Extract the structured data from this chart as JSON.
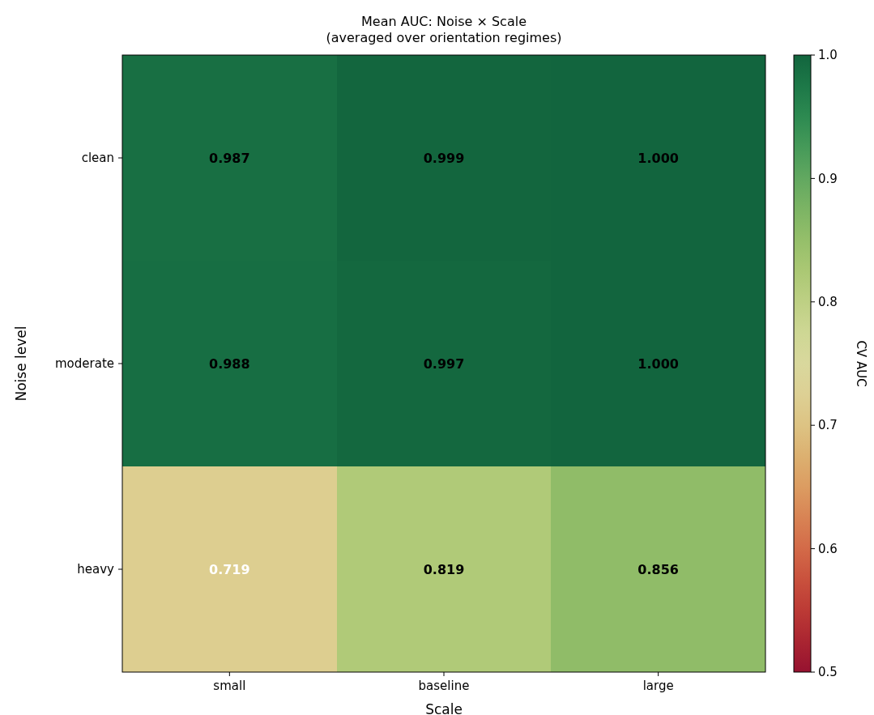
{
  "chart_data": {
    "type": "heatmap",
    "title": "Mean AUC: Noise × Scale",
    "subtitle": "(averaged over orientation regimes)",
    "xlabel": "Scale",
    "ylabel": "Noise level",
    "clabel": "CV AUC",
    "categories": [
      "small",
      "baseline",
      "large"
    ],
    "y_categories": [
      "clean",
      "moderate",
      "heavy"
    ],
    "cells": [
      [
        0.987,
        0.999,
        1.0
      ],
      [
        0.988,
        0.997,
        1.0
      ],
      [
        0.719,
        0.819,
        0.856
      ]
    ],
    "cell_labels": [
      [
        "0.987",
        "0.999",
        "1.000"
      ],
      [
        "0.988",
        "0.997",
        "1.000"
      ],
      [
        "0.719",
        "0.819",
        "0.856"
      ]
    ],
    "clim": [
      0.5,
      1.0
    ],
    "cticks": [
      0.5,
      0.6,
      0.7,
      0.8,
      0.9,
      {
        "value": 1.0,
        "label": "1.0"
      }
    ]
  }
}
